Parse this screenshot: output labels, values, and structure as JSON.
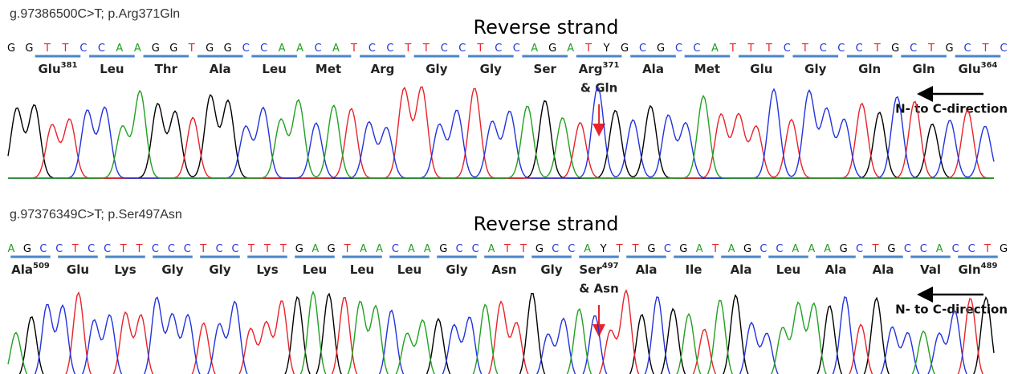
{
  "panels": [
    {
      "title": "g.97386500C>T; p.Arg371Gln",
      "strand": "Reverse strand",
      "sequence": "GGTTCCAAGGTGGCCAACATCCTTCCTCCAGATYGCGCCATTTCTCCCTGCTGCTC",
      "amino_acids": [
        {
          "name": "Glu",
          "sup": "381"
        },
        {
          "name": "Leu"
        },
        {
          "name": "Thr"
        },
        {
          "name": "Ala"
        },
        {
          "name": "Leu"
        },
        {
          "name": "Met"
        },
        {
          "name": "Arg"
        },
        {
          "name": "Gly"
        },
        {
          "name": "Gly"
        },
        {
          "name": "Ser"
        },
        {
          "name": "Arg",
          "sup": "371"
        },
        {
          "name": "Ala"
        },
        {
          "name": "Met"
        },
        {
          "name": "Glu"
        },
        {
          "name": "Gly"
        },
        {
          "name": "Gln"
        },
        {
          "name": "Gln"
        },
        {
          "name": "Glu",
          "sup": "364"
        }
      ],
      "variant_note": "& Gln",
      "variant_index": 10,
      "direction": "N- to C-direction"
    },
    {
      "title": "g.97376349C>T; p.Ser497Asn",
      "strand": "Reverse strand",
      "sequence": "AGCCTCCTTCCCTCCTTTGAGTAACAAGCCATTGCCAYTTGCGATAGCCAAAGCTGCCACCTG",
      "amino_acids": [
        {
          "name": "Ala",
          "sup": "509"
        },
        {
          "name": "Glu"
        },
        {
          "name": "Lys"
        },
        {
          "name": "Gly"
        },
        {
          "name": "Gly"
        },
        {
          "name": "Lys"
        },
        {
          "name": "Leu"
        },
        {
          "name": "Leu"
        },
        {
          "name": "Leu"
        },
        {
          "name": "Gly"
        },
        {
          "name": "Asn"
        },
        {
          "name": "Gly"
        },
        {
          "name": "Ser",
          "sup": "497"
        },
        {
          "name": "Ala"
        },
        {
          "name": "Ile"
        },
        {
          "name": "Ala"
        },
        {
          "name": "Leu"
        },
        {
          "name": "Ala"
        },
        {
          "name": "Ala"
        },
        {
          "name": "Val"
        },
        {
          "name": "Gln",
          "sup": "489"
        }
      ],
      "variant_note": "& Asn",
      "variant_index": 12,
      "direction": "N- to C-direction"
    }
  ]
}
